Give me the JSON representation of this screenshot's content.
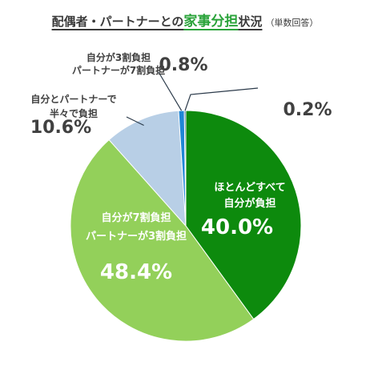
{
  "title": {
    "prefix": "配偶者・パートナーとの",
    "highlight": "家事分担",
    "suffix": "状況",
    "note": "（単数回答）"
  },
  "colors": {
    "title_highlight": "#2aa33a",
    "label_dark": "#404040",
    "label_light": "#ffffff"
  },
  "chart_data": {
    "type": "pie",
    "title": "配偶者・パートナーとの家事分担状況",
    "unit": "%",
    "slices": [
      {
        "label_lines": [
          "ほとんどすべて",
          "自分が負担"
        ],
        "value": 40.0,
        "value_text": "40.0%",
        "color": "#0d8a0d"
      },
      {
        "label_lines": [
          "自分が7割負担",
          "パートナーが3割負担"
        ],
        "value": 48.4,
        "value_text": "48.4%",
        "color": "#93d05a"
      },
      {
        "label_lines": [
          "自分とパートナーで",
          "半々で負担"
        ],
        "value": 10.6,
        "value_text": "10.6%",
        "color": "#b8cfe6"
      },
      {
        "label_lines": [
          "自分が3割負担",
          "パートナーが7割負担"
        ],
        "value": 0.8,
        "value_text": "0.8%",
        "color": "#1f86d6"
      },
      {
        "label_lines": [],
        "value": 0.2,
        "value_text": "0.2%",
        "color": "#1a4d80"
      }
    ]
  }
}
